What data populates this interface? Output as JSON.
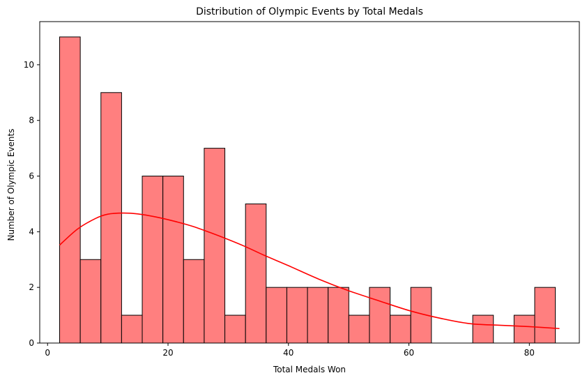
{
  "chart_data": {
    "type": "bar",
    "subtype": "histogram-with-kde",
    "title": "Distribution of Olympic Events by Total Medals",
    "xlabel": "Total Medals Won",
    "ylabel": "Number of Olympic Events",
    "xlim": [
      -1.3,
      88.3
    ],
    "ylim": [
      0,
      11.55
    ],
    "xticks": [
      0,
      20,
      40,
      60,
      80
    ],
    "yticks": [
      0,
      2,
      4,
      6,
      8,
      10
    ],
    "grid": false,
    "legend": "none",
    "bar_color": "#ff7f7f",
    "bar_edge_color": "#000000",
    "kde_color": "#ff0000",
    "bin_edges": [
      2,
      5.43,
      8.86,
      12.29,
      15.72,
      19.15,
      22.58,
      26.01,
      29.44,
      32.87,
      36.3,
      39.73,
      43.16,
      46.59,
      50.02,
      53.45,
      56.88,
      60.31,
      63.74,
      67.17,
      70.6,
      74.03,
      77.46,
      80.89,
      84.32
    ],
    "counts": [
      11,
      3,
      9,
      1,
      6,
      6,
      3,
      7,
      1,
      5,
      2,
      2,
      2,
      2,
      1,
      2,
      1,
      2,
      0,
      0,
      1,
      0,
      1,
      2
    ],
    "kde": {
      "x": [
        2,
        5,
        8,
        10,
        12.5,
        15,
        18,
        21,
        24,
        27,
        30,
        33,
        36,
        40,
        45,
        50,
        55,
        60,
        65,
        70,
        75,
        80,
        85
      ],
      "y": [
        3.52,
        4.1,
        4.48,
        4.63,
        4.67,
        4.64,
        4.53,
        4.38,
        4.2,
        3.97,
        3.72,
        3.45,
        3.15,
        2.78,
        2.3,
        1.88,
        1.52,
        1.17,
        0.9,
        0.7,
        0.64,
        0.59,
        0.52
      ]
    }
  }
}
